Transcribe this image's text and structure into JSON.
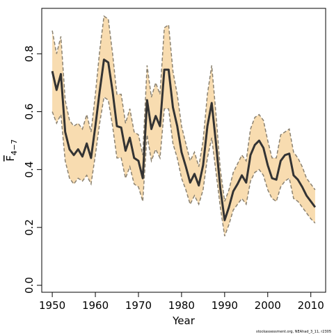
{
  "chart_data": {
    "type": "band-line",
    "x_label": "Year",
    "y_label": {
      "symbol": "F",
      "subscript": "4−7"
    },
    "footnote": "stockassessment.org, NEAhad_3_11, r2305",
    "x": [
      1950,
      1951,
      1952,
      1953,
      1954,
      1955,
      1956,
      1957,
      1958,
      1959,
      1960,
      1961,
      1962,
      1963,
      1964,
      1965,
      1966,
      1967,
      1968,
      1969,
      1970,
      1971,
      1972,
      1973,
      1974,
      1975,
      1976,
      1977,
      1978,
      1979,
      1980,
      1981,
      1982,
      1983,
      1984,
      1985,
      1986,
      1987,
      1988,
      1989,
      1990,
      1991,
      1992,
      1993,
      1994,
      1995,
      1996,
      1997,
      1998,
      1999,
      2000,
      2001,
      2002,
      2003,
      2004,
      2005,
      2006,
      2007,
      2008,
      2009,
      2010,
      2011
    ],
    "values": [
      0.74,
      0.675,
      0.73,
      0.53,
      0.47,
      0.45,
      0.47,
      0.445,
      0.49,
      0.44,
      0.55,
      0.67,
      0.78,
      0.77,
      0.67,
      0.55,
      0.545,
      0.465,
      0.51,
      0.44,
      0.43,
      0.37,
      0.64,
      0.54,
      0.585,
      0.55,
      0.745,
      0.745,
      0.615,
      0.55,
      0.46,
      0.41,
      0.355,
      0.385,
      0.345,
      0.415,
      0.55,
      0.63,
      0.49,
      0.335,
      0.225,
      0.27,
      0.325,
      0.35,
      0.38,
      0.355,
      0.45,
      0.485,
      0.5,
      0.475,
      0.415,
      0.37,
      0.365,
      0.43,
      0.45,
      0.455,
      0.38,
      0.365,
      0.34,
      0.31,
      0.29,
      0.27
    ],
    "lower": [
      0.6,
      0.56,
      0.59,
      0.43,
      0.37,
      0.35,
      0.37,
      0.36,
      0.38,
      0.35,
      0.45,
      0.56,
      0.65,
      0.64,
      0.55,
      0.44,
      0.44,
      0.37,
      0.41,
      0.35,
      0.34,
      0.29,
      0.52,
      0.43,
      0.47,
      0.44,
      0.61,
      0.61,
      0.49,
      0.44,
      0.37,
      0.33,
      0.28,
      0.31,
      0.28,
      0.33,
      0.44,
      0.51,
      0.39,
      0.27,
      0.17,
      0.21,
      0.26,
      0.28,
      0.3,
      0.28,
      0.36,
      0.39,
      0.4,
      0.38,
      0.33,
      0.3,
      0.29,
      0.34,
      0.36,
      0.37,
      0.3,
      0.29,
      0.27,
      0.25,
      0.23,
      0.215
    ],
    "upper": [
      0.88,
      0.8,
      0.86,
      0.64,
      0.57,
      0.55,
      0.56,
      0.54,
      0.59,
      0.53,
      0.66,
      0.81,
      0.93,
      0.92,
      0.8,
      0.66,
      0.66,
      0.56,
      0.61,
      0.53,
      0.52,
      0.45,
      0.76,
      0.65,
      0.7,
      0.66,
      0.89,
      0.9,
      0.74,
      0.66,
      0.55,
      0.49,
      0.43,
      0.46,
      0.41,
      0.5,
      0.66,
      0.76,
      0.59,
      0.4,
      0.29,
      0.33,
      0.39,
      0.42,
      0.45,
      0.43,
      0.54,
      0.58,
      0.59,
      0.57,
      0.5,
      0.44,
      0.44,
      0.52,
      0.53,
      0.54,
      0.46,
      0.44,
      0.41,
      0.37,
      0.35,
      0.33
    ],
    "color": "#333333",
    "band_color": "#f8dcb0",
    "band_edge_color": "#8a8170",
    "xlim": [
      1947.56,
      2013.44
    ],
    "ylim": [
      -0.024,
      0.957
    ],
    "xticks": [
      1950,
      1960,
      1970,
      1980,
      1990,
      2000,
      2010
    ],
    "yticks": [
      {
        "value": 0,
        "label": "0.0"
      },
      0.2,
      0.4,
      0.6,
      0.8
    ]
  }
}
